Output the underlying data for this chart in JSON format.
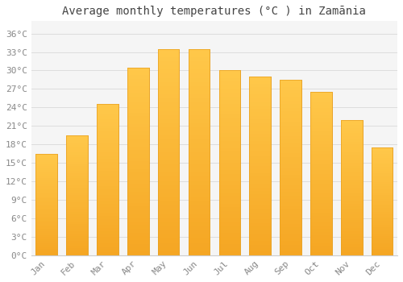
{
  "title": "Average monthly temperatures (°C ) in Zamānia",
  "months": [
    "Jan",
    "Feb",
    "Mar",
    "Apr",
    "May",
    "Jun",
    "Jul",
    "Aug",
    "Sep",
    "Oct",
    "Nov",
    "Dec"
  ],
  "values": [
    16.5,
    19.5,
    24.5,
    30.5,
    33.5,
    33.5,
    30.0,
    29.0,
    28.5,
    26.5,
    22.0,
    17.5
  ],
  "bar_color_top": "#FFC84A",
  "bar_color_bottom": "#F5A623",
  "bar_edge_color": "#E8A020",
  "background_color": "#ffffff",
  "plot_bg_color": "#f5f5f5",
  "grid_color": "#dddddd",
  "ylim": [
    0,
    38
  ],
  "yticks": [
    0,
    3,
    6,
    9,
    12,
    15,
    18,
    21,
    24,
    27,
    30,
    33,
    36
  ],
  "title_fontsize": 10,
  "tick_fontsize": 8,
  "tick_color": "#888888",
  "title_color": "#444444"
}
